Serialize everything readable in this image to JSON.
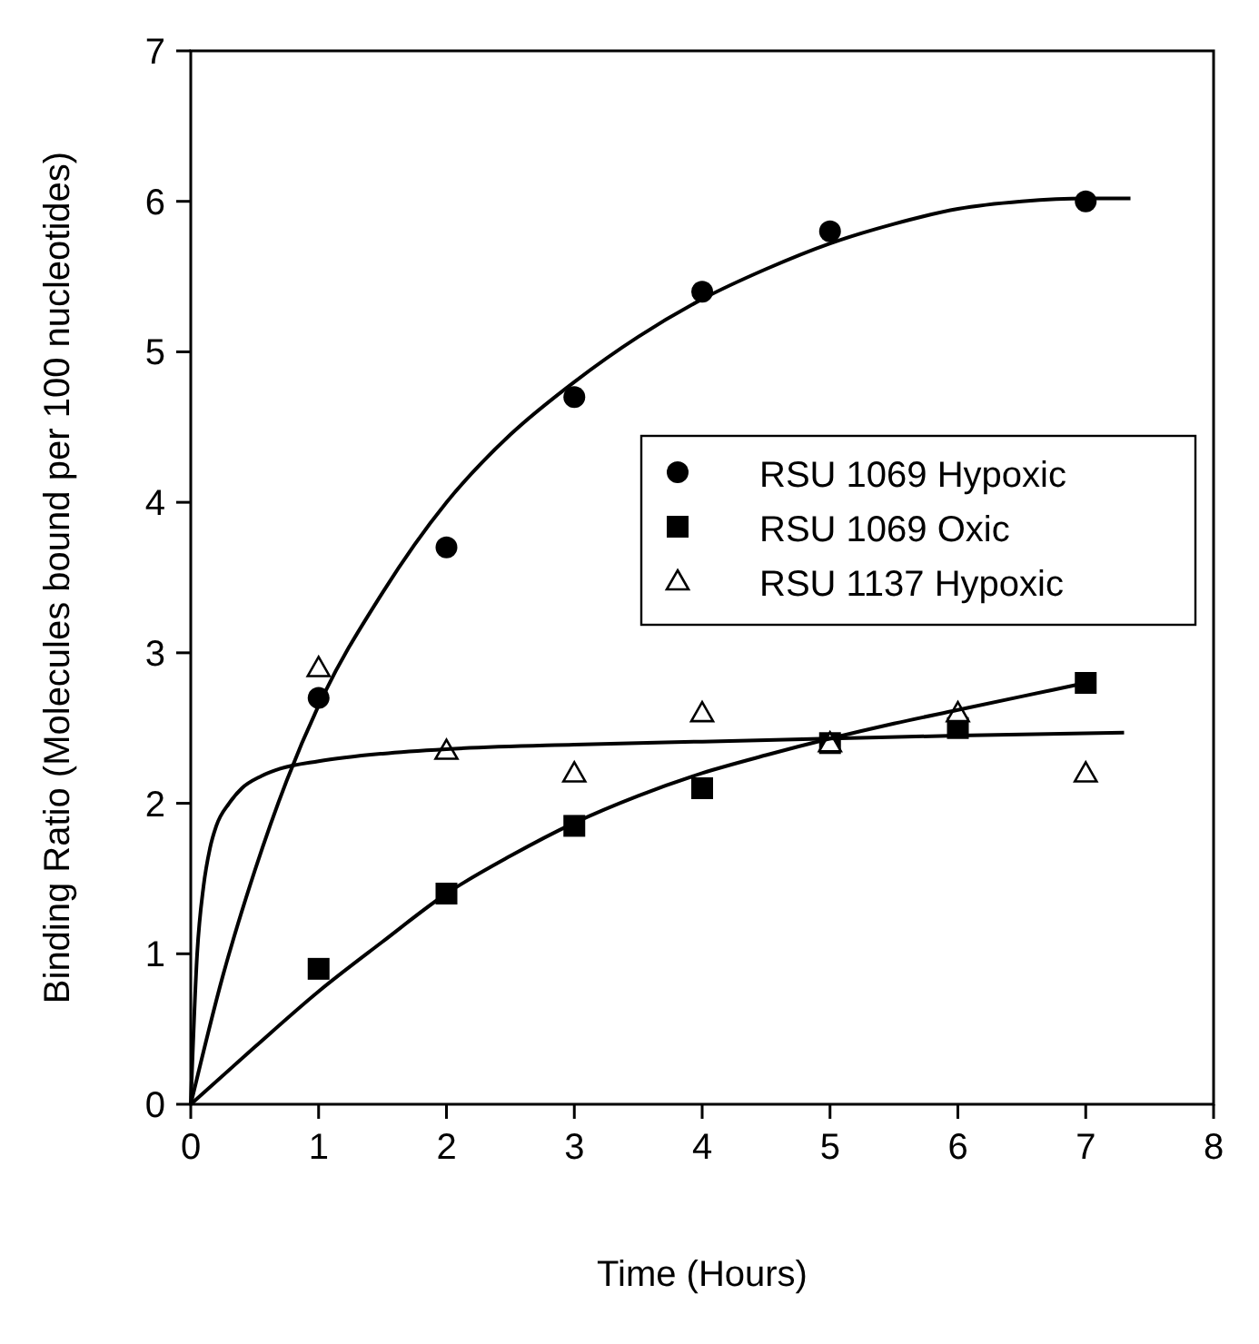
{
  "chart_data": {
    "type": "scatter",
    "xlabel": "Time (Hours)",
    "ylabel": "Binding Ratio (Molecules bound per 100 nucleotides)",
    "xlim": [
      0,
      8
    ],
    "ylim": [
      0,
      7
    ],
    "xticks": [
      0,
      1,
      2,
      3,
      4,
      5,
      6,
      7,
      8
    ],
    "yticks": [
      0,
      1,
      2,
      3,
      4,
      5,
      6,
      7
    ],
    "grid": false,
    "legend": "right",
    "series": [
      {
        "name": "RSU 1069 Hypoxic",
        "marker": "circle",
        "color": "#000000",
        "x": [
          1,
          2,
          3,
          4,
          5,
          7
        ],
        "values": [
          2.7,
          3.7,
          4.7,
          5.4,
          5.8,
          6.0
        ]
      },
      {
        "name": "RSU 1069 Oxic",
        "marker": "square",
        "color": "#000000",
        "x": [
          1,
          2,
          3,
          4,
          5,
          6,
          7
        ],
        "values": [
          0.9,
          1.4,
          1.85,
          2.1,
          2.4,
          2.5,
          2.8
        ]
      },
      {
        "name": "RSU 1137 Hypoxic",
        "marker": "triangle",
        "color": "#000000",
        "x": [
          1,
          2,
          3,
          4,
          5,
          6,
          7
        ],
        "values": [
          2.9,
          2.35,
          2.2,
          2.6,
          2.4,
          2.6,
          2.2
        ]
      },
      {
        "type": "line",
        "marker": "none",
        "line_style": "solid",
        "color": "#000000",
        "x": [
          0,
          0.25,
          0.5,
          0.75,
          1,
          1.5,
          2,
          2.5,
          3,
          3.5,
          4,
          4.5,
          5,
          5.5,
          6,
          6.5,
          7,
          7.35
        ],
        "values": [
          0,
          0.85,
          1.55,
          2.15,
          2.65,
          3.4,
          4.0,
          4.45,
          4.8,
          5.1,
          5.35,
          5.55,
          5.72,
          5.85,
          5.95,
          6.0,
          6.02,
          6.02
        ]
      },
      {
        "type": "line",
        "marker": "none",
        "line_style": "solid",
        "color": "#000000",
        "x": [
          0,
          0.5,
          1,
          1.5,
          2,
          2.5,
          3,
          3.5,
          4,
          4.5,
          5,
          5.5,
          6,
          6.5,
          7
        ],
        "values": [
          0,
          0.38,
          0.75,
          1.08,
          1.4,
          1.65,
          1.87,
          2.05,
          2.2,
          2.32,
          2.43,
          2.53,
          2.62,
          2.71,
          2.8
        ]
      },
      {
        "type": "line",
        "marker": "none",
        "line_style": "solid",
        "color": "#000000",
        "x": [
          0,
          0.05,
          0.1,
          0.15,
          0.2,
          0.3,
          0.4,
          0.55,
          0.7,
          1,
          1.5,
          2,
          3,
          4,
          5,
          6,
          7.3
        ],
        "values": [
          0,
          1.0,
          1.45,
          1.7,
          1.85,
          2.0,
          2.1,
          2.18,
          2.23,
          2.28,
          2.33,
          2.36,
          2.39,
          2.41,
          2.43,
          2.45,
          2.47
        ]
      }
    ]
  }
}
